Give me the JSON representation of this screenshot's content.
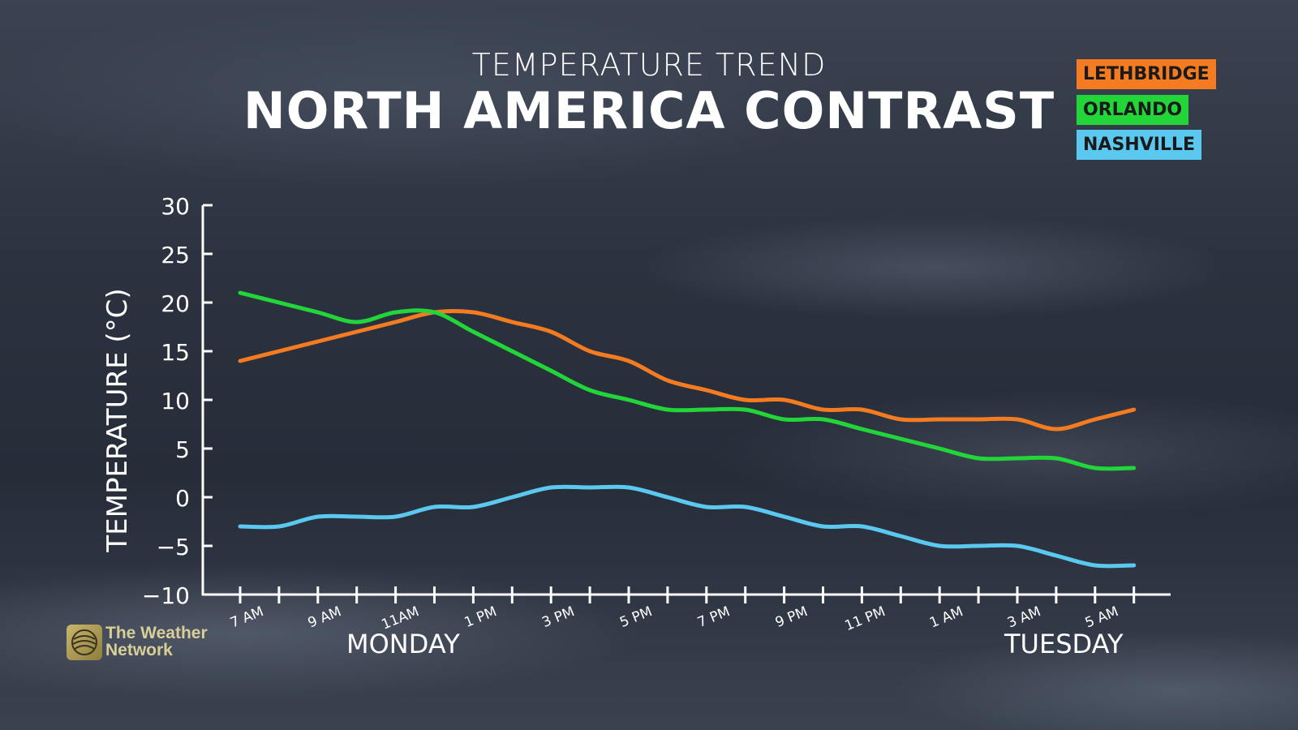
{
  "header": {
    "subtitle": "TEMPERATURE TREND",
    "title": "NORTH AMERICA CONTRAST"
  },
  "legend": [
    {
      "label": "LETHBRIDGE",
      "color": "#f47b20"
    },
    {
      "label": "ORLANDO",
      "color": "#22d63a"
    },
    {
      "label": "NASHVILLE",
      "color": "#5bc8f0"
    }
  ],
  "days": {
    "monday": "MONDAY",
    "tuesday": "TUESDAY"
  },
  "logo": {
    "line1": "The Weather",
    "line2": "Network",
    "icon": "globe-icon"
  },
  "chart_data": {
    "type": "line",
    "title": "NORTH AMERICA CONTRAST",
    "subtitle": "TEMPERATURE TREND",
    "ylabel": "TEMPERATURE (°C)",
    "xlabel": "",
    "ylim": [
      -10,
      30
    ],
    "yticks": [
      30,
      25,
      20,
      15,
      10,
      5,
      0,
      -5,
      -10
    ],
    "ytick_labels": [
      "30",
      "25",
      "20",
      "15",
      "10",
      "5",
      "0",
      "−5",
      "−10"
    ],
    "x": [
      "7 AM",
      "8 AM",
      "9 AM",
      "10 AM",
      "11AM",
      "12 PM",
      "1 PM",
      "2 PM",
      "3 PM",
      "4 PM",
      "5 PM",
      "6 PM",
      "7 PM",
      "8 PM",
      "9 PM",
      "10 PM",
      "11 PM",
      "12 AM",
      "1 AM",
      "2 AM",
      "3 AM",
      "4 AM",
      "5 AM",
      "6 AM"
    ],
    "xtick_labels": [
      {
        "label": "7 AM",
        "index": 0
      },
      {
        "label": "9 AM",
        "index": 2
      },
      {
        "label": "11AM",
        "index": 4
      },
      {
        "label": "1 PM",
        "index": 6
      },
      {
        "label": "3 PM",
        "index": 8
      },
      {
        "label": "5 PM",
        "index": 10
      },
      {
        "label": "7 PM",
        "index": 12
      },
      {
        "label": "9 PM",
        "index": 14
      },
      {
        "label": "11 PM",
        "index": 16
      },
      {
        "label": "1 AM",
        "index": 18
      },
      {
        "label": "3 AM",
        "index": 20
      },
      {
        "label": "5 AM",
        "index": 22
      }
    ],
    "legend_position": "top-right",
    "grid": false,
    "series": [
      {
        "name": "LETHBRIDGE",
        "color": "#f47b20",
        "values": [
          14,
          15,
          16,
          17,
          18,
          19,
          19,
          18,
          17,
          15,
          14,
          12,
          11,
          10,
          10,
          9,
          9,
          8,
          8,
          8,
          8,
          7,
          8,
          9
        ]
      },
      {
        "name": "ORLANDO",
        "color": "#22d63a",
        "values": [
          21,
          20,
          19,
          18,
          19,
          19,
          17,
          15,
          13,
          11,
          10,
          9,
          9,
          9,
          8,
          8,
          7,
          6,
          5,
          4,
          4,
          4,
          3,
          3
        ]
      },
      {
        "name": "NASHVILLE",
        "color": "#5bc8f0",
        "values": [
          -3,
          -3,
          -2,
          -2,
          -2,
          -1,
          -1,
          0,
          1,
          1,
          1,
          0,
          -1,
          -1,
          -2,
          -3,
          -3,
          -4,
          -5,
          -5,
          -5,
          -6,
          -7,
          -7
        ]
      }
    ]
  }
}
